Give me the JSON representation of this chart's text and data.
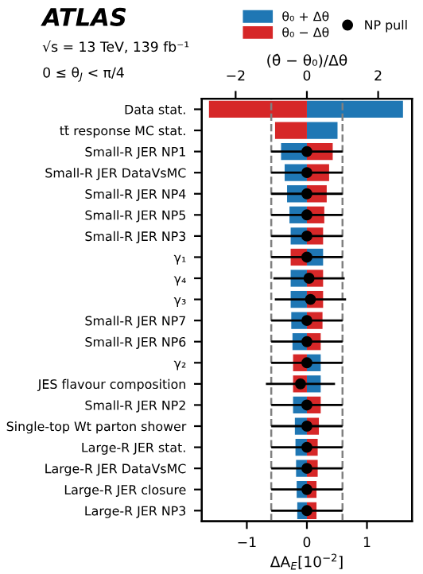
{
  "chart_data": {
    "type": "bar",
    "orientation": "horizontal",
    "title": "ATLAS",
    "subtitle": "√s = 13 TeV, 139 fb⁻¹",
    "annotations": [
      "0 ≤ θ$_{J}$ < π/4"
    ],
    "xlabel": "ΔA$_{E}$[10$^{−2}$]",
    "x2label": "(θ̂ − θ₀)/Δθ",
    "categories": [
      "Data stat.",
      "tt̄ response MC stat.",
      "Small-R JER NP1",
      "Small-R JER DataVsMC",
      "Small-R JER NP4",
      "Small-R JER NP5",
      "Small-R JER NP3",
      "γ₁",
      "γ₄",
      "γ₃",
      "Small-R JER NP7",
      "Small-R JER NP6",
      "γ₂",
      "JES flavour composition",
      "Small-R JER NP2",
      "Single-top Wt parton shower",
      "Large-R JER stat.",
      "Large-R JER DataVsMC",
      "Large-R JER closure",
      "Large-R JER NP3"
    ],
    "xlim": [
      -1.75,
      1.75
    ],
    "xticks": [
      {
        "value": -1,
        "label": "−1"
      },
      0,
      1
    ],
    "x2lim": [
      -2.95,
      2.95
    ],
    "x2ticks": [
      {
        "value": -2,
        "label": "−2"
      },
      0,
      2
    ],
    "series": [
      {
        "name": "θ₀ + Δθ",
        "color": "#1f77b4",
        "values": [
          1.6,
          0.51,
          -0.43,
          -0.37,
          -0.33,
          -0.29,
          -0.27,
          0.27,
          -0.27,
          -0.27,
          -0.26,
          -0.24,
          0.23,
          0.23,
          -0.23,
          -0.2,
          -0.19,
          -0.18,
          -0.17,
          -0.16
        ]
      },
      {
        "name": "θ₀ − Δθ",
        "color": "#d62728",
        "values": [
          -1.63,
          -0.53,
          0.43,
          0.37,
          0.33,
          0.29,
          0.27,
          -0.27,
          0.27,
          0.27,
          0.26,
          0.23,
          -0.23,
          -0.23,
          0.23,
          0.2,
          0.18,
          0.18,
          0.16,
          0.16
        ]
      },
      {
        "name": "NP pull",
        "type": "scatter",
        "axis": "x2",
        "color": "#000000",
        "marker": "circle",
        "values": [
          null,
          null,
          0,
          0,
          0,
          0,
          0,
          0,
          0.06,
          0.1,
          0,
          0,
          0,
          -0.18,
          0,
          0,
          0,
          0,
          0,
          0
        ],
        "errors": [
          null,
          null,
          1,
          1,
          1,
          1,
          1,
          1,
          1,
          1,
          1,
          1,
          1,
          0.97,
          1,
          1,
          1,
          1,
          1,
          1
        ]
      }
    ],
    "ref_lines": [
      {
        "axis": "x2",
        "value": -1,
        "line_style": "dashed",
        "color": "#808080"
      },
      {
        "axis": "x2",
        "value": 1,
        "line_style": "dashed",
        "color": "#808080"
      }
    ],
    "stacked": true,
    "legend": "top right"
  }
}
